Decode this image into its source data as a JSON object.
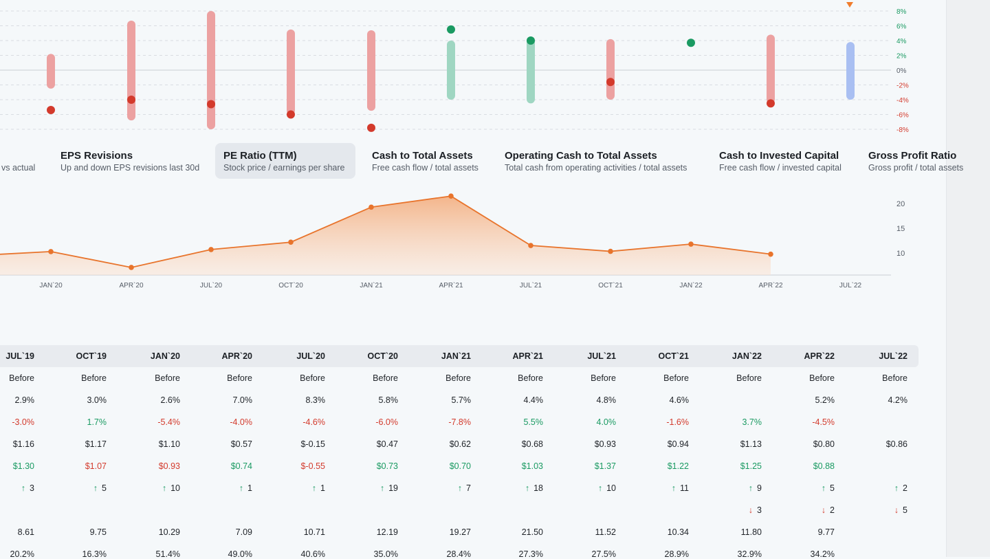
{
  "top_chart": {
    "y_ticks": [
      "8%",
      "6%",
      "4%",
      "2%",
      "0%",
      "-2%",
      "-4%",
      "-6%",
      "-8%"
    ],
    "colors": {
      "positive": "#1a9a62",
      "negative": "#d33a2c",
      "bar_red": "#eca1a1",
      "bar_green": "#9fd6c2",
      "bar_blue": "#a9bff2",
      "marker": "#f07c2c"
    },
    "ranges": [
      {
        "low": -2.5,
        "high": 2.2,
        "point": -5.4,
        "color": "red"
      },
      {
        "low": -6.8,
        "high": 6.7,
        "point": -4.0,
        "color": "red"
      },
      {
        "low": -8.0,
        "high": 8.0,
        "point": -4.6,
        "color": "red"
      },
      {
        "low": -6.0,
        "high": 5.5,
        "point": -6.0,
        "color": "red"
      },
      {
        "low": -5.5,
        "high": 5.4,
        "point": -7.8,
        "color": "red"
      },
      {
        "low": -4.0,
        "high": 4.0,
        "point": 5.5,
        "color": "green"
      },
      {
        "low": -4.5,
        "high": 4.5,
        "point": 4.0,
        "color": "green"
      },
      {
        "low": -4.0,
        "high": 4.2,
        "point": -1.6,
        "color": "red"
      },
      {
        "low": null,
        "high": null,
        "point": 3.7,
        "color": "green"
      },
      {
        "low": -4.5,
        "high": 4.8,
        "point": -4.5,
        "color": "red"
      },
      {
        "low": -4.0,
        "high": 3.8,
        "point": null,
        "color": "blue"
      }
    ]
  },
  "metric_tabs": [
    {
      "title": "",
      "desc": "vs actual"
    },
    {
      "title": "EPS Revisions",
      "desc": "Up and down EPS revisions last 30d"
    },
    {
      "title": "PE Ratio (TTM)",
      "desc": "Stock price / earnings per share",
      "active": true
    },
    {
      "title": "Cash to Total Assets",
      "desc": "Free cash flow / total assets"
    },
    {
      "title": "Operating Cash to Total Assets",
      "desc": "Total cash from operating activities / total assets"
    },
    {
      "title": "Cash to Invested Capital",
      "desc": "Free cash flow / invested capital"
    },
    {
      "title": "Gross Profit Ratio",
      "desc": "Gross profit / total assets"
    }
  ],
  "chart_data": {
    "type": "area",
    "title": "",
    "x": [
      "JAN`20",
      "APR`20",
      "JUL`20",
      "OCT`20",
      "JAN`21",
      "APR`21",
      "JUL`21",
      "OCT`21",
      "JAN`22",
      "APR`22",
      "JUL`22"
    ],
    "values": [
      10.29,
      7.09,
      10.71,
      12.19,
      19.27,
      21.5,
      11.52,
      10.34,
      11.8,
      9.77,
      null
    ],
    "leading_value": 9.75,
    "y_ticks": [
      10,
      15,
      20
    ],
    "ylim": [
      5.5,
      23
    ],
    "color": "#e8742c"
  },
  "table": {
    "columns": [
      "JUL`19",
      "OCT`19",
      "JAN`20",
      "APR`20",
      "JUL`20",
      "OCT`20",
      "JAN`21",
      "APR`21",
      "JUL`21",
      "OCT`21",
      "JAN`22",
      "APR`22",
      "JUL`22"
    ],
    "rows": [
      {
        "kind": "text",
        "cells": [
          "Before",
          "Before",
          "Before",
          "Before",
          "Before",
          "Before",
          "Before",
          "Before",
          "Before",
          "Before",
          "Before",
          "Before",
          "Before"
        ]
      },
      {
        "kind": "text",
        "cells": [
          "2.9%",
          "3.0%",
          "2.6%",
          "7.0%",
          "8.3%",
          "5.8%",
          "5.7%",
          "4.4%",
          "4.8%",
          "4.6%",
          "",
          "5.2%",
          "4.2%"
        ]
      },
      {
        "kind": "signed",
        "cells": [
          "-3.0%",
          "1.7%",
          "-5.4%",
          "-4.0%",
          "-4.6%",
          "-6.0%",
          "-7.8%",
          "5.5%",
          "4.0%",
          "-1.6%",
          "3.7%",
          "-4.5%",
          ""
        ]
      },
      {
        "kind": "text",
        "cells": [
          "$1.16",
          "$1.17",
          "$1.10",
          "$0.57",
          "$-0.15",
          "$0.47",
          "$0.62",
          "$0.68",
          "$0.93",
          "$0.94",
          "$1.13",
          "$0.80",
          "$0.86"
        ]
      },
      {
        "kind": "colored",
        "colors": [
          "green",
          "red",
          "red",
          "green",
          "red",
          "green",
          "green",
          "green",
          "green",
          "green",
          "green",
          "green",
          ""
        ],
        "cells": [
          "$1.30",
          "$1.07",
          "$0.93",
          "$0.74",
          "$-0.55",
          "$0.73",
          "$0.70",
          "$1.03",
          "$1.37",
          "$1.22",
          "$1.25",
          "$0.88",
          ""
        ]
      },
      {
        "kind": "up",
        "cells": [
          "3",
          "5",
          "10",
          "1",
          "1",
          "19",
          "7",
          "18",
          "10",
          "11",
          "9",
          "5",
          "2"
        ]
      },
      {
        "kind": "down",
        "cells": [
          "",
          "",
          "",
          "",
          "",
          "",
          "",
          "",
          "",
          "",
          "3",
          "2",
          "5"
        ]
      },
      {
        "kind": "text",
        "cells": [
          "8.61",
          "9.75",
          "10.29",
          "7.09",
          "10.71",
          "12.19",
          "19.27",
          "21.50",
          "11.52",
          "10.34",
          "11.80",
          "9.77",
          ""
        ]
      },
      {
        "kind": "text",
        "cells": [
          "20.2%",
          "16.3%",
          "51.4%",
          "49.0%",
          "40.6%",
          "35.0%",
          "28.4%",
          "27.3%",
          "27.5%",
          "28.9%",
          "32.9%",
          "34.2%",
          ""
        ]
      }
    ]
  }
}
